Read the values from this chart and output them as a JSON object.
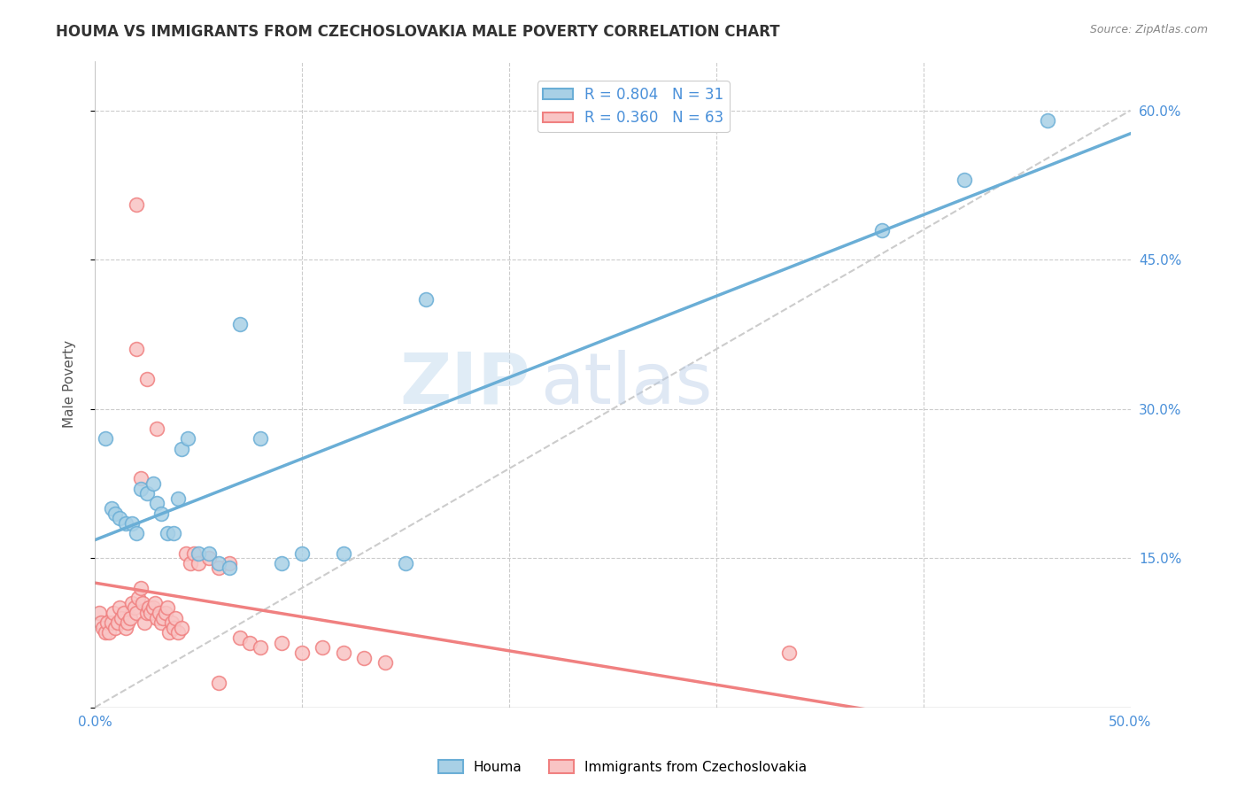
{
  "title": "HOUMA VS IMMIGRANTS FROM CZECHOSLOVAKIA MALE POVERTY CORRELATION CHART",
  "source": "Source: ZipAtlas.com",
  "ylabel": "Male Poverty",
  "xlim": [
    0.0,
    0.5
  ],
  "ylim": [
    0.0,
    0.65
  ],
  "series1_label": "Houma",
  "series1_R": "0.804",
  "series1_N": "31",
  "series1_line_color": "#6aaed6",
  "series1_marker_facecolor": "#a8d0e6",
  "series1_marker_edgecolor": "#6aaed6",
  "series2_label": "Immigrants from Czechoslovakia",
  "series2_R": "0.360",
  "series2_N": "63",
  "series2_line_color": "#f08080",
  "series2_marker_facecolor": "#f9c4c4",
  "series2_marker_edgecolor": "#f08080",
  "houma_x": [
    0.005,
    0.008,
    0.01,
    0.012,
    0.015,
    0.018,
    0.02,
    0.022,
    0.025,
    0.028,
    0.03,
    0.032,
    0.035,
    0.038,
    0.04,
    0.042,
    0.045,
    0.05,
    0.055,
    0.06,
    0.065,
    0.07,
    0.08,
    0.09,
    0.1,
    0.12,
    0.15,
    0.16,
    0.38,
    0.42,
    0.46
  ],
  "houma_y": [
    0.27,
    0.2,
    0.195,
    0.19,
    0.185,
    0.185,
    0.175,
    0.22,
    0.215,
    0.225,
    0.205,
    0.195,
    0.175,
    0.175,
    0.21,
    0.26,
    0.27,
    0.155,
    0.155,
    0.145,
    0.14,
    0.385,
    0.27,
    0.145,
    0.155,
    0.155,
    0.145,
    0.41,
    0.48,
    0.53,
    0.59
  ],
  "czecho_x": [
    0.002,
    0.003,
    0.004,
    0.005,
    0.006,
    0.007,
    0.008,
    0.009,
    0.01,
    0.011,
    0.012,
    0.013,
    0.014,
    0.015,
    0.016,
    0.017,
    0.018,
    0.019,
    0.02,
    0.021,
    0.022,
    0.023,
    0.024,
    0.025,
    0.026,
    0.027,
    0.028,
    0.029,
    0.03,
    0.031,
    0.032,
    0.033,
    0.034,
    0.035,
    0.036,
    0.037,
    0.038,
    0.039,
    0.04,
    0.042,
    0.044,
    0.046,
    0.048,
    0.05,
    0.055,
    0.06,
    0.065,
    0.07,
    0.075,
    0.08,
    0.09,
    0.1,
    0.11,
    0.12,
    0.13,
    0.14,
    0.03,
    0.025,
    0.02,
    0.335,
    0.02,
    0.022,
    0.06
  ],
  "czecho_y": [
    0.095,
    0.085,
    0.08,
    0.075,
    0.085,
    0.075,
    0.085,
    0.095,
    0.08,
    0.085,
    0.1,
    0.09,
    0.095,
    0.08,
    0.085,
    0.09,
    0.105,
    0.1,
    0.095,
    0.11,
    0.12,
    0.105,
    0.085,
    0.095,
    0.1,
    0.095,
    0.1,
    0.105,
    0.09,
    0.095,
    0.085,
    0.09,
    0.095,
    0.1,
    0.075,
    0.085,
    0.08,
    0.09,
    0.075,
    0.08,
    0.155,
    0.145,
    0.155,
    0.145,
    0.15,
    0.14,
    0.145,
    0.07,
    0.065,
    0.06,
    0.065,
    0.055,
    0.06,
    0.055,
    0.05,
    0.045,
    0.28,
    0.33,
    0.36,
    0.055,
    0.505,
    0.23,
    0.025
  ],
  "watermark_zip": "ZIP",
  "watermark_atlas": "atlas",
  "background_color": "#ffffff",
  "grid_color": "#cccccc",
  "title_color": "#333333",
  "tick_color": "#4a90d9",
  "ref_line_color": "#cccccc",
  "legend_R_N_color": "#4a90d9"
}
